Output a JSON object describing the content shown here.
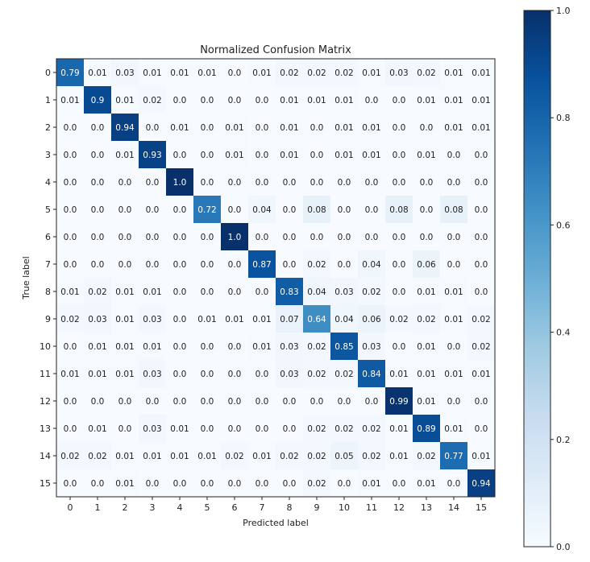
{
  "chart_data": {
    "type": "heatmap",
    "title": "Normalized Confusion Matrix",
    "xlabel": "Predicted label",
    "ylabel": "True label",
    "x_categories": [
      "0",
      "1",
      "2",
      "3",
      "4",
      "5",
      "6",
      "7",
      "8",
      "9",
      "10",
      "11",
      "12",
      "13",
      "14",
      "15"
    ],
    "y_categories": [
      "0",
      "1",
      "2",
      "3",
      "4",
      "5",
      "6",
      "7",
      "8",
      "9",
      "10",
      "11",
      "12",
      "13",
      "14",
      "15"
    ],
    "cell_labels": [
      [
        "0.79",
        "0.01",
        "0.03",
        "0.01",
        "0.01",
        "0.01",
        "0.0",
        "0.01",
        "0.02",
        "0.02",
        "0.02",
        "0.01",
        "0.03",
        "0.02",
        "0.01",
        "0.01"
      ],
      [
        "0.01",
        "0.9",
        "0.01",
        "0.02",
        "0.0",
        "0.0",
        "0.0",
        "0.0",
        "0.01",
        "0.01",
        "0.01",
        "0.0",
        "0.0",
        "0.01",
        "0.01",
        "0.01"
      ],
      [
        "0.0",
        "0.0",
        "0.94",
        "0.0",
        "0.01",
        "0.0",
        "0.01",
        "0.0",
        "0.01",
        "0.0",
        "0.01",
        "0.01",
        "0.0",
        "0.0",
        "0.01",
        "0.01"
      ],
      [
        "0.0",
        "0.0",
        "0.01",
        "0.93",
        "0.0",
        "0.0",
        "0.01",
        "0.0",
        "0.01",
        "0.0",
        "0.01",
        "0.01",
        "0.0",
        "0.01",
        "0.0",
        "0.0"
      ],
      [
        "0.0",
        "0.0",
        "0.0",
        "0.0",
        "1.0",
        "0.0",
        "0.0",
        "0.0",
        "0.0",
        "0.0",
        "0.0",
        "0.0",
        "0.0",
        "0.0",
        "0.0",
        "0.0"
      ],
      [
        "0.0",
        "0.0",
        "0.0",
        "0.0",
        "0.0",
        "0.72",
        "0.0",
        "0.04",
        "0.0",
        "0.08",
        "0.0",
        "0.0",
        "0.08",
        "0.0",
        "0.08",
        "0.0"
      ],
      [
        "0.0",
        "0.0",
        "0.0",
        "0.0",
        "0.0",
        "0.0",
        "1.0",
        "0.0",
        "0.0",
        "0.0",
        "0.0",
        "0.0",
        "0.0",
        "0.0",
        "0.0",
        "0.0"
      ],
      [
        "0.0",
        "0.0",
        "0.0",
        "0.0",
        "0.0",
        "0.0",
        "0.0",
        "0.87",
        "0.0",
        "0.02",
        "0.0",
        "0.04",
        "0.0",
        "0.06",
        "0.0",
        "0.0"
      ],
      [
        "0.01",
        "0.02",
        "0.01",
        "0.01",
        "0.0",
        "0.0",
        "0.0",
        "0.0",
        "0.83",
        "0.04",
        "0.03",
        "0.02",
        "0.0",
        "0.01",
        "0.01",
        "0.0"
      ],
      [
        "0.02",
        "0.03",
        "0.01",
        "0.03",
        "0.0",
        "0.01",
        "0.01",
        "0.01",
        "0.07",
        "0.64",
        "0.04",
        "0.06",
        "0.02",
        "0.02",
        "0.01",
        "0.02"
      ],
      [
        "0.0",
        "0.01",
        "0.01",
        "0.01",
        "0.0",
        "0.0",
        "0.0",
        "0.01",
        "0.03",
        "0.02",
        "0.85",
        "0.03",
        "0.0",
        "0.01",
        "0.0",
        "0.02"
      ],
      [
        "0.01",
        "0.01",
        "0.01",
        "0.03",
        "0.0",
        "0.0",
        "0.0",
        "0.0",
        "0.03",
        "0.02",
        "0.02",
        "0.84",
        "0.01",
        "0.01",
        "0.01",
        "0.01"
      ],
      [
        "0.0",
        "0.0",
        "0.0",
        "0.0",
        "0.0",
        "0.0",
        "0.0",
        "0.0",
        "0.0",
        "0.0",
        "0.0",
        "0.0",
        "0.99",
        "0.01",
        "0.0",
        "0.0"
      ],
      [
        "0.0",
        "0.01",
        "0.0",
        "0.03",
        "0.01",
        "0.0",
        "0.0",
        "0.0",
        "0.0",
        "0.02",
        "0.02",
        "0.02",
        "0.01",
        "0.89",
        "0.01",
        "0.0"
      ],
      [
        "0.02",
        "0.02",
        "0.01",
        "0.01",
        "0.01",
        "0.01",
        "0.02",
        "0.01",
        "0.02",
        "0.02",
        "0.05",
        "0.02",
        "0.01",
        "0.02",
        "0.77",
        "0.01"
      ],
      [
        "0.0",
        "0.0",
        "0.01",
        "0.0",
        "0.0",
        "0.0",
        "0.0",
        "0.0",
        "0.0",
        "0.02",
        "0.0",
        "0.01",
        "0.0",
        "0.01",
        "0.0",
        "0.94"
      ]
    ],
    "colorbar": {
      "range": [
        0.0,
        1.0
      ],
      "ticks": [
        0.0,
        0.2,
        0.4,
        0.6,
        0.8,
        1.0
      ],
      "tick_labels": [
        "0.0",
        "0.2",
        "0.4",
        "0.6",
        "0.8",
        "1.0"
      ],
      "colormap": "Blues",
      "low_color": "#f7fbff",
      "high_color": "#08306b"
    },
    "grid": false
  }
}
